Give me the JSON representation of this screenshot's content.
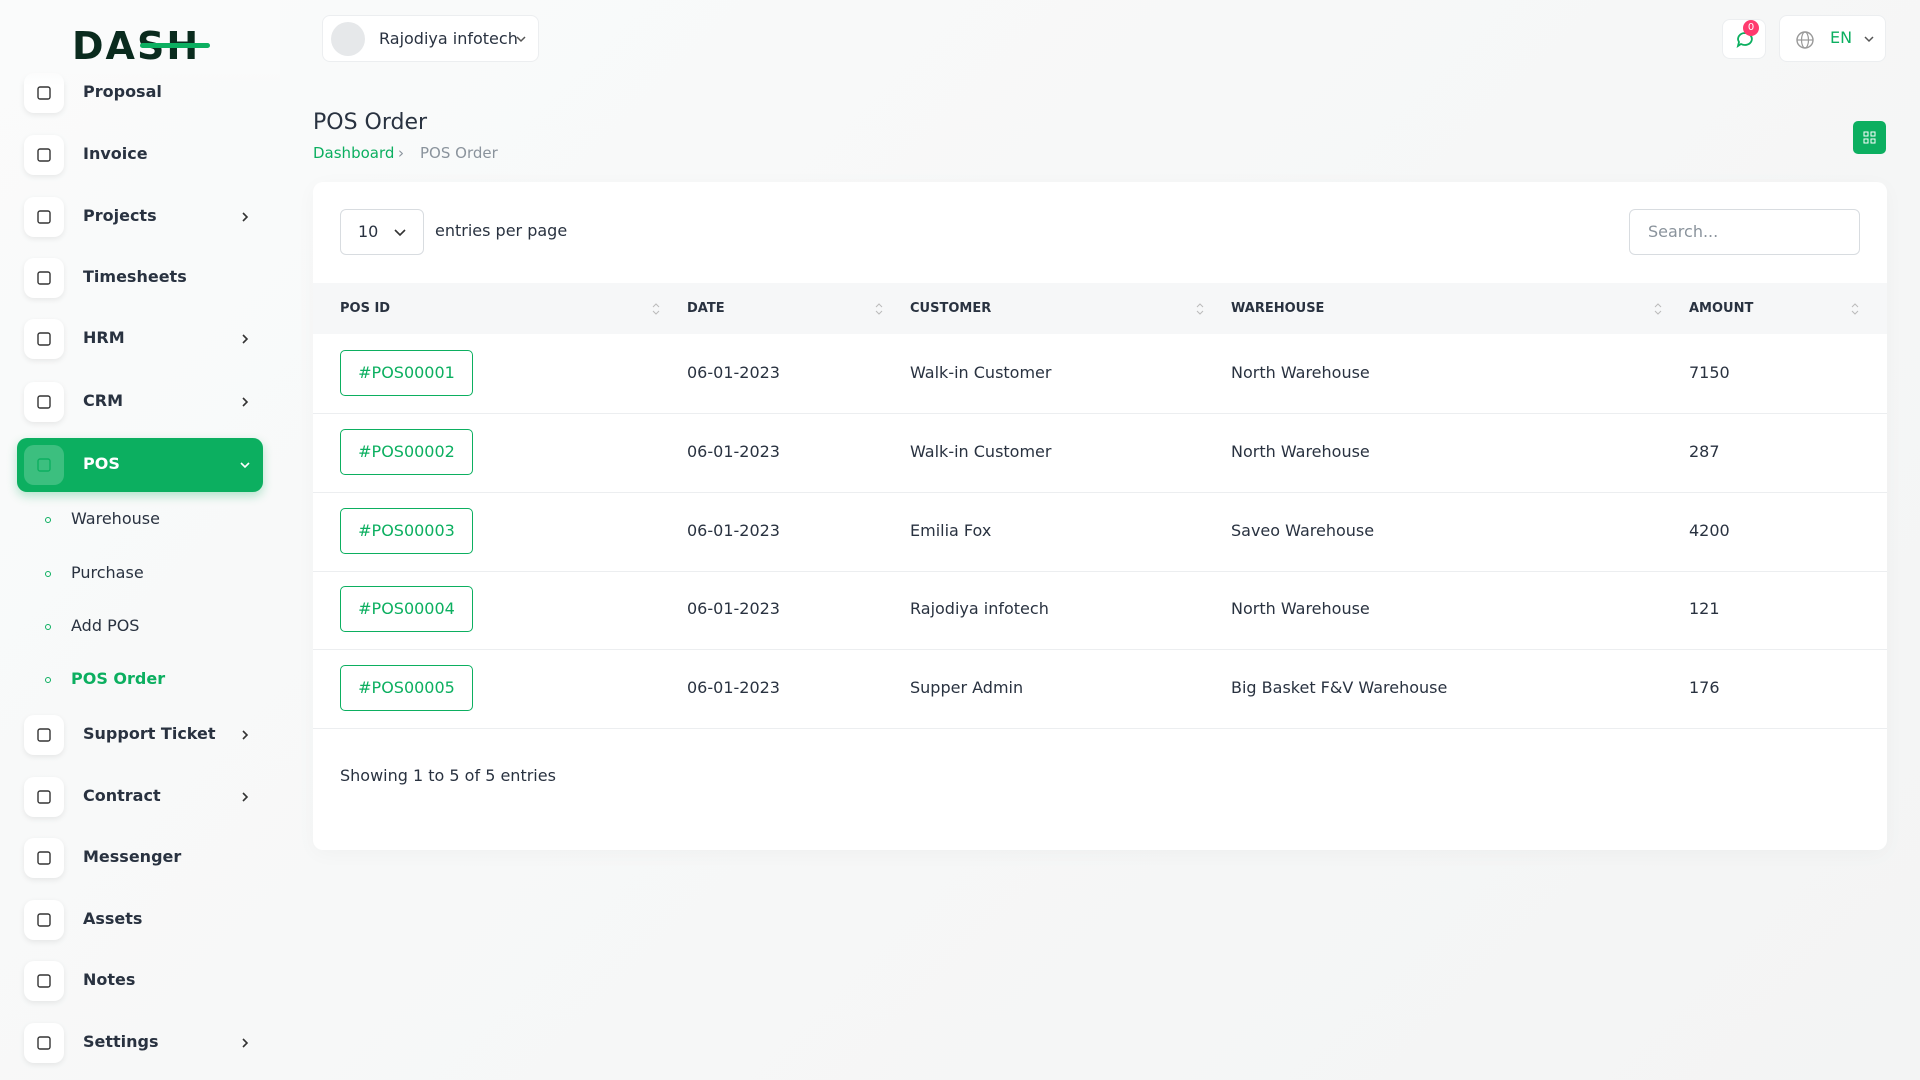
{
  "logo": "DASH",
  "header": {
    "user": "Rajodiya infotech",
    "notifications": "0",
    "language": "EN"
  },
  "sidebar": {
    "items": [
      {
        "label": "Proposal",
        "submenu": false
      },
      {
        "label": "Invoice",
        "submenu": false
      },
      {
        "label": "Projects",
        "submenu": true
      },
      {
        "label": "Timesheets",
        "submenu": false
      },
      {
        "label": "HRM",
        "submenu": true
      },
      {
        "label": "CRM",
        "submenu": true
      },
      {
        "label": "POS",
        "submenu": true,
        "active": true,
        "children": [
          {
            "label": "Warehouse"
          },
          {
            "label": "Purchase"
          },
          {
            "label": "Add POS"
          },
          {
            "label": "POS Order",
            "active": true
          }
        ]
      },
      {
        "label": "Support Ticket",
        "submenu": true
      },
      {
        "label": "Contract",
        "submenu": true
      },
      {
        "label": "Messenger",
        "submenu": false
      },
      {
        "label": "Assets",
        "submenu": false
      },
      {
        "label": "Notes",
        "submenu": false
      },
      {
        "label": "Settings",
        "submenu": true
      }
    ]
  },
  "page": {
    "title": "POS Order",
    "breadcrumb": [
      "Dashboard",
      "POS Order"
    ]
  },
  "table": {
    "page_size": "10",
    "page_size_label": "entries per page",
    "search_placeholder": "Search...",
    "columns": [
      "POS ID",
      "DATE",
      "CUSTOMER",
      "WAREHOUSE",
      "AMOUNT"
    ],
    "rows": [
      [
        "#POS00001",
        "06-01-2023",
        "Walk-in Customer",
        "North Warehouse",
        7150
      ],
      [
        "#POS00002",
        "06-01-2023",
        "Walk-in Customer",
        "North Warehouse",
        287
      ],
      [
        "#POS00003",
        "06-01-2023",
        "Emilia Fox",
        "Saveo Warehouse",
        4200
      ],
      [
        "#POS00004",
        "06-01-2023",
        "Rajodiya infotech",
        "North Warehouse",
        121
      ],
      [
        "#POS00005",
        "06-01-2023",
        "Supper Admin",
        "Big Basket F&V Warehouse",
        176
      ]
    ],
    "footer": "Showing 1 to 5 of 5 entries"
  }
}
